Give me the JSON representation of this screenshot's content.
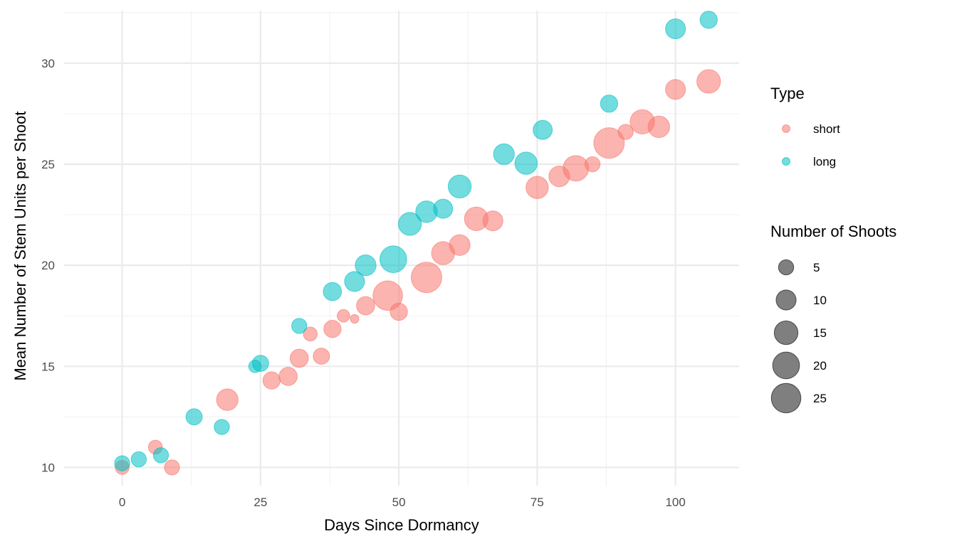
{
  "chart_data": {
    "type": "scatter",
    "xlabel": "Days Since Dormancy",
    "ylabel": "Mean Number of Stem Units per Shoot",
    "xlim": [
      -10.5,
      111.5
    ],
    "ylim": [
      9.1,
      32.6
    ],
    "x_ticks": [
      0,
      25,
      50,
      75,
      100
    ],
    "y_ticks": [
      10,
      15,
      20,
      25,
      30
    ],
    "x_tick_labels": [
      "0",
      "25",
      "50",
      "75",
      "100"
    ],
    "y_tick_labels": [
      "10",
      "15",
      "20",
      "25",
      "30"
    ],
    "grid": true,
    "legend_position": "right",
    "colors": {
      "short": "#F8766D",
      "long": "#00BFC4",
      "size_legend": "#000000"
    },
    "legend": {
      "color_title": "Type",
      "color_entries": [
        "short",
        "long"
      ],
      "size_title": "Number of Shoots",
      "size_values": [
        5,
        10,
        15,
        20,
        25
      ],
      "size_labels": [
        "5",
        "10",
        "15",
        "20",
        "25"
      ]
    },
    "series": [
      {
        "name": "short",
        "points": [
          {
            "x": 0,
            "y": 10.0,
            "n": 4
          },
          {
            "x": 6,
            "y": 11.0,
            "n": 4
          },
          {
            "x": 9,
            "y": 10.0,
            "n": 5
          },
          {
            "x": 19,
            "y": 13.35,
            "n": 12
          },
          {
            "x": 27,
            "y": 14.3,
            "n": 7
          },
          {
            "x": 30,
            "y": 14.5,
            "n": 8
          },
          {
            "x": 32,
            "y": 15.4,
            "n": 8
          },
          {
            "x": 34,
            "y": 16.6,
            "n": 4
          },
          {
            "x": 36,
            "y": 15.5,
            "n": 6
          },
          {
            "x": 38,
            "y": 16.85,
            "n": 7
          },
          {
            "x": 40,
            "y": 17.5,
            "n": 3
          },
          {
            "x": 42,
            "y": 17.35,
            "n": 1
          },
          {
            "x": 44,
            "y": 18.0,
            "n": 8
          },
          {
            "x": 48,
            "y": 18.5,
            "n": 25
          },
          {
            "x": 50,
            "y": 17.7,
            "n": 7
          },
          {
            "x": 55,
            "y": 19.4,
            "n": 27
          },
          {
            "x": 58,
            "y": 20.6,
            "n": 14
          },
          {
            "x": 61,
            "y": 21.0,
            "n": 11
          },
          {
            "x": 64,
            "y": 22.3,
            "n": 15
          },
          {
            "x": 67,
            "y": 22.2,
            "n": 10
          },
          {
            "x": 75,
            "y": 23.85,
            "n": 13
          },
          {
            "x": 79,
            "y": 24.4,
            "n": 11
          },
          {
            "x": 82,
            "y": 24.8,
            "n": 18
          },
          {
            "x": 85,
            "y": 25.0,
            "n": 5
          },
          {
            "x": 88,
            "y": 26.05,
            "n": 27
          },
          {
            "x": 91,
            "y": 26.6,
            "n": 5
          },
          {
            "x": 94,
            "y": 27.1,
            "n": 16
          },
          {
            "x": 97,
            "y": 26.85,
            "n": 12
          },
          {
            "x": 100,
            "y": 28.7,
            "n": 10
          },
          {
            "x": 106,
            "y": 29.1,
            "n": 15
          }
        ]
      },
      {
        "name": "long",
        "points": [
          {
            "x": 0,
            "y": 10.2,
            "n": 5
          },
          {
            "x": 3,
            "y": 10.4,
            "n": 5
          },
          {
            "x": 7,
            "y": 10.6,
            "n": 5
          },
          {
            "x": 13,
            "y": 12.5,
            "n": 6
          },
          {
            "x": 18,
            "y": 12.0,
            "n": 5
          },
          {
            "x": 24,
            "y": 15.0,
            "n": 3
          },
          {
            "x": 25,
            "y": 15.15,
            "n": 6
          },
          {
            "x": 32,
            "y": 17.0,
            "n": 5
          },
          {
            "x": 38,
            "y": 18.7,
            "n": 8
          },
          {
            "x": 42,
            "y": 19.2,
            "n": 10
          },
          {
            "x": 44,
            "y": 20.0,
            "n": 11
          },
          {
            "x": 49,
            "y": 20.3,
            "n": 20
          },
          {
            "x": 52,
            "y": 22.05,
            "n": 14
          },
          {
            "x": 55,
            "y": 22.65,
            "n": 12
          },
          {
            "x": 58,
            "y": 22.8,
            "n": 9
          },
          {
            "x": 61,
            "y": 23.9,
            "n": 14
          },
          {
            "x": 69,
            "y": 25.5,
            "n": 11
          },
          {
            "x": 73,
            "y": 25.05,
            "n": 13
          },
          {
            "x": 76,
            "y": 26.7,
            "n": 9
          },
          {
            "x": 88,
            "y": 28.0,
            "n": 7
          },
          {
            "x": 100,
            "y": 31.7,
            "n": 10
          },
          {
            "x": 106,
            "y": 32.15,
            "n": 7
          }
        ]
      }
    ]
  }
}
